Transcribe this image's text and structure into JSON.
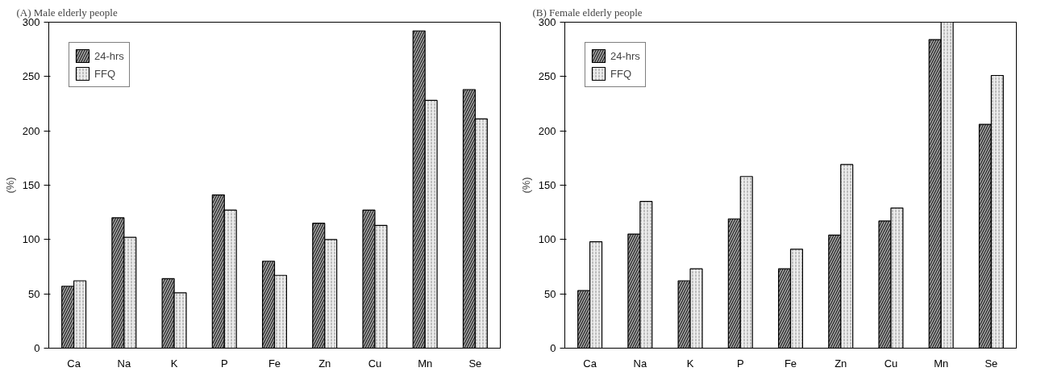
{
  "chart_data": [
    {
      "type": "bar",
      "title": "(A) Male elderly people",
      "ylabel": "(%)",
      "categories": [
        "Ca",
        "Na",
        "K",
        "P",
        "Fe",
        "Zn",
        "Cu",
        "Mn",
        "Se"
      ],
      "series": [
        {
          "name": "24-hrs",
          "color": "#a6a6a6",
          "values": [
            57,
            120,
            64,
            141,
            80,
            115,
            127,
            292,
            238
          ]
        },
        {
          "name": "FFQ",
          "color": "#ececec",
          "values": [
            62,
            102,
            51,
            127,
            67,
            100,
            113,
            228,
            211
          ]
        }
      ],
      "ylim": [
        0,
        300
      ],
      "yticks": [
        0,
        50,
        100,
        150,
        200,
        250,
        300
      ],
      "grid": false,
      "legend": "top left"
    },
    {
      "type": "bar",
      "title": "(B) Female elderly people",
      "ylabel": "(%)",
      "categories": [
        "Ca",
        "Na",
        "K",
        "P",
        "Fe",
        "Zn",
        "Cu",
        "Mn",
        "Se"
      ],
      "series": [
        {
          "name": "24-hrs",
          "color": "#a6a6a6",
          "values": [
            53,
            105,
            62,
            119,
            73,
            104,
            117,
            284,
            206
          ]
        },
        {
          "name": "FFQ",
          "color": "#ececec",
          "values": [
            98,
            135,
            73,
            158,
            91,
            169,
            129,
            300,
            251
          ]
        }
      ],
      "ylim": [
        0,
        300
      ],
      "yticks": [
        0,
        50,
        100,
        150,
        200,
        250,
        300
      ],
      "grid": false,
      "legend": "top left"
    }
  ]
}
